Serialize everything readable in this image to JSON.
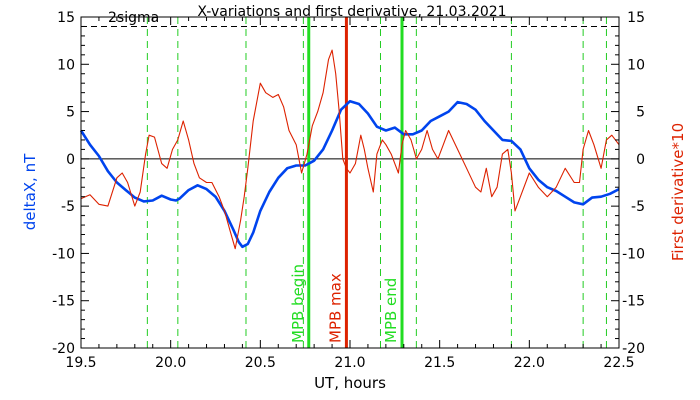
{
  "chart_data": {
    "type": "line",
    "title": "X-variations and first derivative, 21.03.2021",
    "xlabel": "UT, hours",
    "ylabel_left": "deltaX, nT",
    "ylabel_right": "First derivative*10",
    "xlim": [
      19.5,
      22.5
    ],
    "ylim": [
      -20,
      15
    ],
    "x_ticks": [
      "19.5",
      "20.0",
      "20.5",
      "21.0",
      "21.5",
      "22.0",
      "22.5"
    ],
    "y_ticks": [
      "-20",
      "-15",
      "-10",
      "-5",
      "0",
      "5",
      "10",
      "15"
    ],
    "grid": false,
    "threshold": {
      "label": "2sigma",
      "value": 14,
      "style": "dashed",
      "color": "#000000"
    },
    "zero_line": 0,
    "events": [
      {
        "label": "MPB begin",
        "x": 20.77,
        "color": "#22dd22"
      },
      {
        "label": "MPB max",
        "x": 20.98,
        "color": "#dd2200"
      },
      {
        "label": "MPB end",
        "x": 21.29,
        "color": "#22dd22"
      }
    ],
    "markers": {
      "color": "#22cc22",
      "x": [
        19.87,
        20.04,
        20.42,
        20.74,
        21.17,
        21.37,
        21.9,
        22.3,
        22.43
      ]
    },
    "series": [
      {
        "color": "#0044ee",
        "x": [
          19.5,
          19.55,
          19.6,
          19.65,
          19.7,
          19.75,
          19.8,
          19.85,
          19.9,
          19.95,
          20.0,
          20.03,
          20.05,
          20.1,
          20.15,
          20.2,
          20.25,
          20.3,
          20.35,
          20.38,
          20.4,
          20.43,
          20.46,
          20.5,
          20.55,
          20.6,
          20.65,
          20.7,
          20.75,
          20.8,
          20.85,
          20.9,
          20.95,
          21.0,
          21.05,
          21.1,
          21.15,
          21.2,
          21.25,
          21.3,
          21.35,
          21.4,
          21.45,
          21.5,
          21.55,
          21.6,
          21.65,
          21.7,
          21.75,
          21.8,
          21.85,
          21.9,
          21.95,
          22.0,
          22.05,
          22.1,
          22.15,
          22.2,
          22.25,
          22.3,
          22.35,
          22.4,
          22.45,
          22.5
        ],
        "values": [
          3.0,
          1.5,
          0.3,
          -1.3,
          -2.5,
          -3.3,
          -4.1,
          -4.5,
          -4.4,
          -3.9,
          -4.3,
          -4.4,
          -4.2,
          -3.3,
          -2.8,
          -3.2,
          -4.0,
          -5.5,
          -7.5,
          -8.8,
          -9.3,
          -9.0,
          -7.8,
          -5.5,
          -3.5,
          -2.0,
          -1.0,
          -0.7,
          -0.7,
          -0.2,
          1.0,
          3.0,
          5.2,
          6.1,
          5.8,
          4.8,
          3.4,
          3.0,
          3.3,
          2.6,
          2.6,
          3.0,
          4.0,
          4.5,
          5.0,
          6.0,
          5.8,
          5.2,
          4.0,
          3.0,
          2.0,
          1.9,
          1.0,
          -1.0,
          -2.2,
          -3.0,
          -3.4,
          -4.0,
          -4.6,
          -4.8,
          -4.1,
          -4.0,
          -3.7,
          -3.2
        ]
      },
      {
        "color": "#dd2200",
        "x": [
          19.5,
          19.55,
          19.6,
          19.65,
          19.7,
          19.73,
          19.76,
          19.8,
          19.83,
          19.86,
          19.88,
          19.91,
          19.95,
          19.98,
          20.01,
          20.04,
          20.07,
          20.1,
          20.13,
          20.16,
          20.2,
          20.23,
          20.27,
          20.3,
          20.33,
          20.36,
          20.39,
          20.41,
          20.43,
          20.46,
          20.5,
          20.53,
          20.57,
          20.6,
          20.63,
          20.66,
          20.7,
          20.73,
          20.76,
          20.79,
          20.82,
          20.85,
          20.88,
          20.9,
          20.92,
          20.94,
          20.96,
          20.98,
          21.0,
          21.03,
          21.06,
          21.08,
          21.1,
          21.13,
          21.15,
          21.18,
          21.2,
          21.23,
          21.25,
          21.27,
          21.29,
          21.31,
          21.34,
          21.37,
          21.4,
          21.43,
          21.46,
          21.49,
          21.52,
          21.55,
          21.6,
          21.65,
          21.7,
          21.73,
          21.76,
          21.79,
          21.82,
          21.85,
          21.88,
          21.9,
          21.92,
          21.95,
          22.0,
          22.05,
          22.1,
          22.15,
          22.2,
          22.25,
          22.28,
          22.3,
          22.33,
          22.36,
          22.4,
          22.43,
          22.46,
          22.5
        ],
        "values": [
          -4.2,
          -3.8,
          -4.8,
          -5.0,
          -2.0,
          -1.5,
          -2.5,
          -5.0,
          -3.5,
          0.5,
          2.5,
          2.3,
          -0.5,
          -1.0,
          1.0,
          2.0,
          4.0,
          2.0,
          -0.5,
          -2.0,
          -2.5,
          -2.5,
          -4.0,
          -5.5,
          -7.5,
          -9.5,
          -6.5,
          -4.0,
          -1.0,
          4.0,
          8.0,
          7.0,
          6.5,
          6.8,
          5.5,
          3.0,
          1.5,
          -1.5,
          0.5,
          3.5,
          5.0,
          7.0,
          10.5,
          11.5,
          9.0,
          5.0,
          0.0,
          -1.0,
          -1.5,
          -0.5,
          2.5,
          1.0,
          -1.0,
          -3.5,
          0.5,
          2.0,
          1.5,
          0.5,
          -0.5,
          -1.5,
          1.5,
          3.0,
          2.0,
          0.0,
          1.0,
          3.0,
          1.0,
          0.0,
          1.5,
          3.0,
          1.0,
          -1.0,
          -3.0,
          -3.5,
          -1.0,
          -4.0,
          -3.0,
          0.5,
          1.0,
          -1.5,
          -5.5,
          -4.0,
          -1.5,
          -3.0,
          -4.0,
          -3.0,
          -1.0,
          -2.5,
          -2.5,
          1.0,
          3.0,
          1.5,
          -1.0,
          2.0,
          2.5,
          1.5
        ]
      }
    ]
  }
}
